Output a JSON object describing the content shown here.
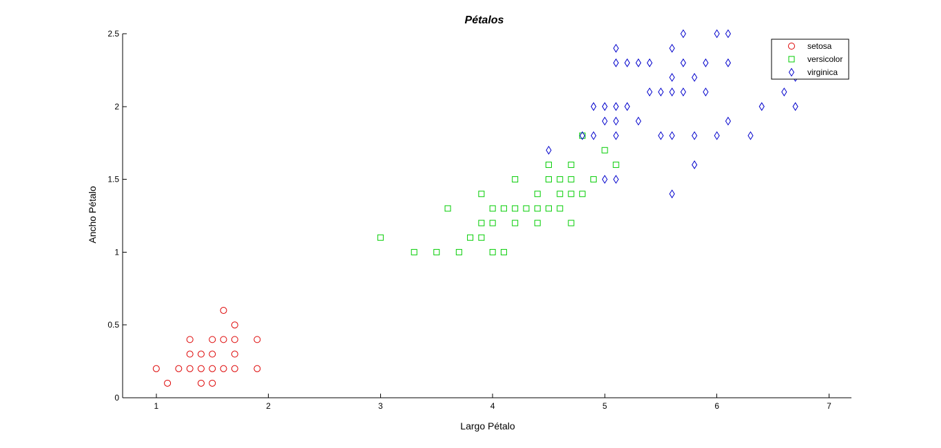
{
  "chart_data": {
    "type": "scatter",
    "title": "Pétalos",
    "xlabel": "Largo Pétalo",
    "ylabel": "Ancho Pétalo",
    "xlim": [
      0.7,
      7.2
    ],
    "ylim": [
      0,
      2.5
    ],
    "xticks": [
      "1",
      "2",
      "3",
      "4",
      "5",
      "6",
      "7"
    ],
    "yticks": [
      "0",
      "0.5",
      "1",
      "1.5",
      "2",
      "2.5"
    ],
    "grid": false,
    "legend_position": "top-right",
    "series": [
      {
        "name": "setosa",
        "marker": "circle",
        "color": "#dd0000",
        "points": [
          [
            1.0,
            0.2
          ],
          [
            1.1,
            0.1
          ],
          [
            1.2,
            0.2
          ],
          [
            1.3,
            0.2
          ],
          [
            1.3,
            0.3
          ],
          [
            1.3,
            0.4
          ],
          [
            1.4,
            0.1
          ],
          [
            1.4,
            0.2
          ],
          [
            1.4,
            0.3
          ],
          [
            1.5,
            0.1
          ],
          [
            1.5,
            0.2
          ],
          [
            1.5,
            0.3
          ],
          [
            1.5,
            0.4
          ],
          [
            1.6,
            0.2
          ],
          [
            1.6,
            0.4
          ],
          [
            1.6,
            0.6
          ],
          [
            1.7,
            0.2
          ],
          [
            1.7,
            0.3
          ],
          [
            1.7,
            0.4
          ],
          [
            1.7,
            0.5
          ],
          [
            1.9,
            0.2
          ],
          [
            1.9,
            0.4
          ]
        ]
      },
      {
        "name": "versicolor",
        "marker": "square",
        "color": "#00cc00",
        "points": [
          [
            3.0,
            1.1
          ],
          [
            3.3,
            1.0
          ],
          [
            3.5,
            1.0
          ],
          [
            3.6,
            1.3
          ],
          [
            3.7,
            1.0
          ],
          [
            3.8,
            1.1
          ],
          [
            3.9,
            1.1
          ],
          [
            3.9,
            1.2
          ],
          [
            3.9,
            1.4
          ],
          [
            4.0,
            1.0
          ],
          [
            4.0,
            1.2
          ],
          [
            4.0,
            1.3
          ],
          [
            4.1,
            1.0
          ],
          [
            4.1,
            1.3
          ],
          [
            4.2,
            1.2
          ],
          [
            4.2,
            1.3
          ],
          [
            4.2,
            1.5
          ],
          [
            4.3,
            1.3
          ],
          [
            4.4,
            1.2
          ],
          [
            4.4,
            1.3
          ],
          [
            4.4,
            1.4
          ],
          [
            4.5,
            1.3
          ],
          [
            4.5,
            1.5
          ],
          [
            4.5,
            1.6
          ],
          [
            4.6,
            1.3
          ],
          [
            4.6,
            1.4
          ],
          [
            4.6,
            1.5
          ],
          [
            4.7,
            1.2
          ],
          [
            4.7,
            1.4
          ],
          [
            4.7,
            1.5
          ],
          [
            4.7,
            1.6
          ],
          [
            4.8,
            1.4
          ],
          [
            4.8,
            1.8
          ],
          [
            4.9,
            1.5
          ],
          [
            5.0,
            1.7
          ],
          [
            5.1,
            1.6
          ]
        ]
      },
      {
        "name": "virginica",
        "marker": "diamond",
        "color": "#0000cc",
        "points": [
          [
            4.5,
            1.7
          ],
          [
            4.8,
            1.8
          ],
          [
            4.9,
            1.8
          ],
          [
            4.9,
            2.0
          ],
          [
            5.0,
            1.5
          ],
          [
            5.0,
            1.9
          ],
          [
            5.0,
            2.0
          ],
          [
            5.1,
            1.5
          ],
          [
            5.1,
            1.8
          ],
          [
            5.1,
            1.9
          ],
          [
            5.1,
            2.0
          ],
          [
            5.1,
            2.3
          ],
          [
            5.1,
            2.4
          ],
          [
            5.2,
            2.0
          ],
          [
            5.2,
            2.3
          ],
          [
            5.3,
            1.9
          ],
          [
            5.3,
            2.3
          ],
          [
            5.4,
            2.1
          ],
          [
            5.4,
            2.3
          ],
          [
            5.5,
            1.8
          ],
          [
            5.5,
            2.1
          ],
          [
            5.6,
            1.4
          ],
          [
            5.6,
            1.8
          ],
          [
            5.6,
            2.1
          ],
          [
            5.6,
            2.2
          ],
          [
            5.6,
            2.4
          ],
          [
            5.7,
            2.1
          ],
          [
            5.7,
            2.3
          ],
          [
            5.7,
            2.5
          ],
          [
            5.8,
            1.6
          ],
          [
            5.8,
            1.8
          ],
          [
            5.8,
            2.2
          ],
          [
            5.9,
            2.1
          ],
          [
            5.9,
            2.3
          ],
          [
            6.0,
            1.8
          ],
          [
            6.0,
            2.5
          ],
          [
            6.1,
            1.9
          ],
          [
            6.1,
            2.3
          ],
          [
            6.1,
            2.5
          ],
          [
            6.3,
            1.8
          ],
          [
            6.4,
            2.0
          ],
          [
            6.6,
            2.1
          ],
          [
            6.7,
            2.0
          ],
          [
            6.7,
            2.2
          ]
        ]
      }
    ]
  }
}
